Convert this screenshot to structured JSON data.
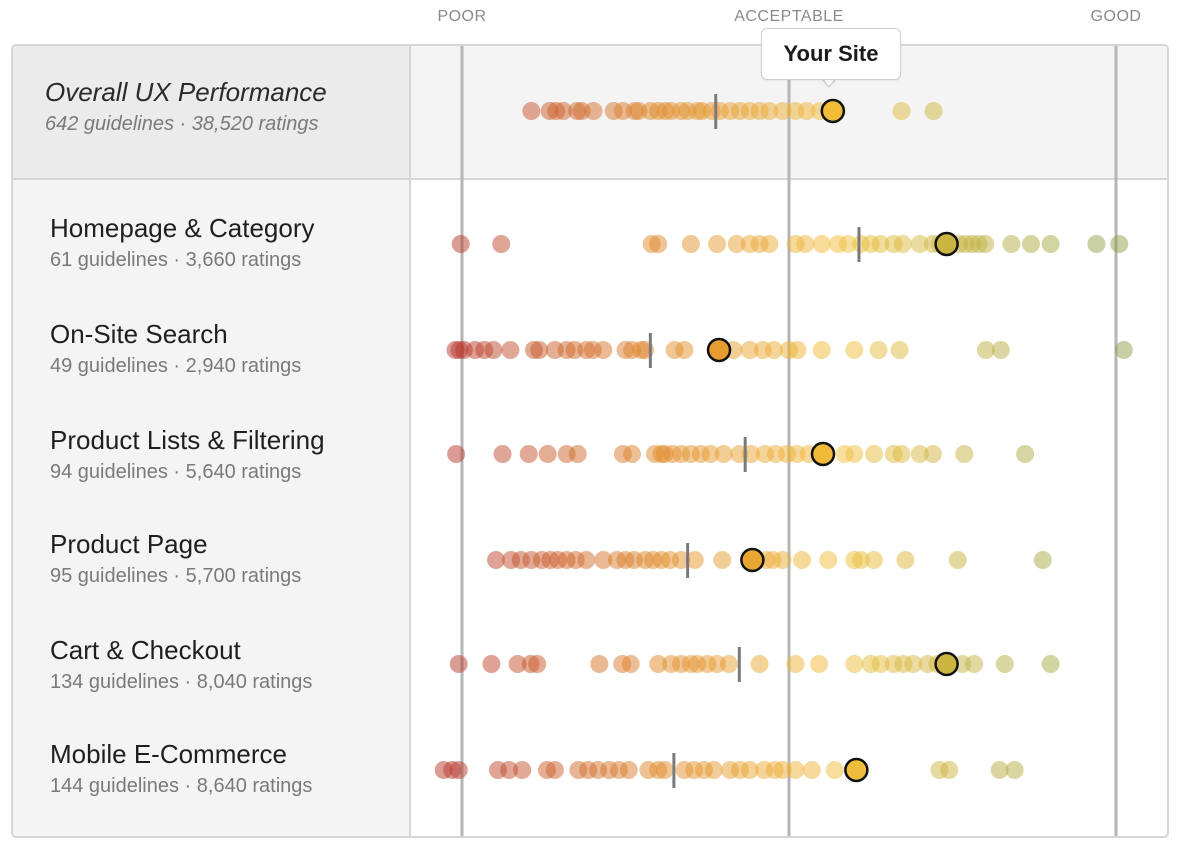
{
  "scale": {
    "poor": "POOR",
    "acceptable": "ACCEPTABLE",
    "good": "GOOD"
  },
  "tooltip": {
    "label": "Your Site"
  },
  "colors": {
    "poor": "#b83a2e",
    "mid": "#e08a2a",
    "acceptable": "#f2bf3a",
    "good": "#8ea24a",
    "marker_stroke": "#111111",
    "median": "#7a7a7a",
    "gridline": "#b5b5b5"
  },
  "chart_data": {
    "type": "scatter",
    "title": "",
    "xlabel": "",
    "ylabel": "",
    "xlim": [
      0,
      1
    ],
    "x_scale_labels": [
      "POOR",
      "ACCEPTABLE",
      "GOOD"
    ],
    "x_scale_positions": [
      0,
      0.5,
      1
    ],
    "categories": [
      {
        "name": "Overall UX Performance",
        "sub": "642 guidelines · 38,520 ratings",
        "your_site": 0.567,
        "median": 0.388,
        "points": [
          0.106,
          0.134,
          0.144,
          0.155,
          0.176,
          0.183,
          0.201,
          0.232,
          0.246,
          0.264,
          0.27,
          0.288,
          0.3,
          0.311,
          0.32,
          0.335,
          0.345,
          0.36,
          0.367,
          0.382,
          0.394,
          0.41,
          0.425,
          0.44,
          0.455,
          0.47,
          0.49,
          0.51,
          0.527,
          0.547,
          0.573,
          0.672,
          0.721
        ]
      },
      {
        "name": "Homepage & Category",
        "sub": "61 guidelines · 3,660 ratings",
        "your_site": 0.741,
        "median": 0.607,
        "points": [
          -0.002,
          0.06,
          0.29,
          0.3,
          0.35,
          0.39,
          0.42,
          0.44,
          0.455,
          0.47,
          0.51,
          0.525,
          0.55,
          0.575,
          0.59,
          0.61,
          0.625,
          0.64,
          0.66,
          0.674,
          0.7,
          0.72,
          0.73,
          0.76,
          0.77,
          0.78,
          0.79,
          0.8,
          0.84,
          0.87,
          0.9,
          0.97,
          1.005
        ]
      },
      {
        "name": "On-Site Search",
        "sub": "49 guidelines · 2,940 ratings",
        "your_site": 0.393,
        "median": 0.288,
        "points": [
          -0.01,
          -0.004,
          0.003,
          0.02,
          0.034,
          0.048,
          0.074,
          0.11,
          0.118,
          0.142,
          0.16,
          0.172,
          0.19,
          0.2,
          0.216,
          0.25,
          0.26,
          0.274,
          0.28,
          0.325,
          0.34,
          0.415,
          0.44,
          0.46,
          0.477,
          0.5,
          0.513,
          0.55,
          0.6,
          0.637,
          0.669,
          0.801,
          0.824,
          1.012
        ]
      },
      {
        "name": "Product Lists & Filtering",
        "sub": "94 guidelines · 5,640 ratings",
        "your_site": 0.552,
        "median": 0.433,
        "points": [
          -0.009,
          0.062,
          0.102,
          0.131,
          0.16,
          0.177,
          0.246,
          0.26,
          0.295,
          0.305,
          0.31,
          0.322,
          0.335,
          0.35,
          0.365,
          0.38,
          0.4,
          0.424,
          0.442,
          0.463,
          0.48,
          0.497,
          0.512,
          0.53,
          0.585,
          0.6,
          0.63,
          0.66,
          0.672,
          0.7,
          0.72,
          0.768,
          0.861
        ]
      },
      {
        "name": "Product Page",
        "sub": "95 guidelines · 5,700 ratings",
        "your_site": 0.444,
        "median": 0.345,
        "points": [
          0.052,
          0.075,
          0.09,
          0.106,
          0.122,
          0.135,
          0.147,
          0.16,
          0.174,
          0.19,
          0.216,
          0.237,
          0.25,
          0.263,
          0.28,
          0.292,
          0.305,
          0.318,
          0.335,
          0.356,
          0.398,
          0.465,
          0.475,
          0.49,
          0.52,
          0.56,
          0.6,
          0.61,
          0.63,
          0.678,
          0.758,
          0.888
        ]
      },
      {
        "name": "Cart & Checkout",
        "sub": "134 guidelines · 8,040 ratings",
        "your_site": 0.741,
        "median": 0.424,
        "points": [
          -0.005,
          0.045,
          0.085,
          0.105,
          0.115,
          0.21,
          0.245,
          0.258,
          0.3,
          0.32,
          0.335,
          0.35,
          0.36,
          0.375,
          0.39,
          0.408,
          0.455,
          0.51,
          0.546,
          0.6,
          0.625,
          0.64,
          0.66,
          0.675,
          0.69,
          0.712,
          0.727,
          0.745,
          0.765,
          0.783,
          0.83,
          0.9
        ]
      },
      {
        "name": "Mobile E-Commerce",
        "sub": "144 guidelines · 8,640 ratings",
        "your_site": 0.603,
        "median": 0.324,
        "points": [
          -0.028,
          -0.015,
          -0.005,
          0.055,
          0.072,
          0.092,
          0.13,
          0.142,
          0.178,
          0.193,
          0.208,
          0.225,
          0.24,
          0.255,
          0.285,
          0.3,
          0.31,
          0.34,
          0.355,
          0.37,
          0.385,
          0.41,
          0.425,
          0.44,
          0.462,
          0.478,
          0.49,
          0.51,
          0.535,
          0.57,
          0.73,
          0.745,
          0.822,
          0.845
        ]
      }
    ]
  }
}
